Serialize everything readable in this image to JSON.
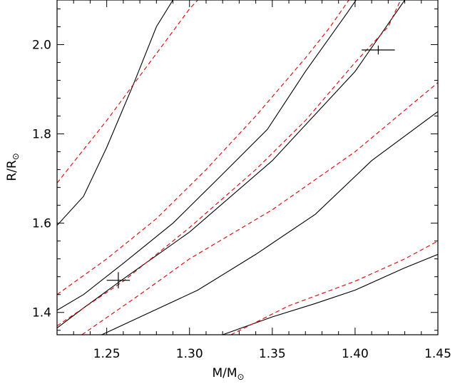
{
  "chart_data": {
    "type": "line",
    "xlabel": "M/M",
    "xlabel_subscript": "⊙",
    "ylabel": "R/R",
    "ylabel_subscript": "⊙",
    "xlim": [
      1.22,
      1.45
    ],
    "ylim": [
      1.35,
      2.1
    ],
    "xticks": [
      1.25,
      1.3,
      1.35,
      1.4,
      1.45
    ],
    "xtick_labels": [
      "1.25",
      "1.30",
      "1.35",
      "1.40",
      "1.45"
    ],
    "yticks": [
      1.4,
      1.6,
      1.8,
      2.0
    ],
    "ytick_labels": [
      "1.4",
      "1.6",
      "1.8",
      "2.0"
    ],
    "grid": false,
    "colors": {
      "solid": "#000000",
      "dashed": "#dd0000"
    },
    "series": [
      {
        "style": "solid",
        "points": [
          [
            1.22,
            1.595
          ],
          [
            1.236,
            1.66
          ],
          [
            1.25,
            1.77
          ],
          [
            1.266,
            1.91
          ],
          [
            1.28,
            2.04
          ],
          [
            1.29,
            2.1
          ]
        ]
      },
      {
        "style": "solid",
        "points": [
          [
            1.22,
            1.405
          ],
          [
            1.236,
            1.44
          ],
          [
            1.26,
            1.51
          ],
          [
            1.29,
            1.6
          ],
          [
            1.32,
            1.71
          ],
          [
            1.347,
            1.81
          ],
          [
            1.37,
            1.94
          ],
          [
            1.395,
            2.07
          ],
          [
            1.41,
            2.15
          ]
        ]
      },
      {
        "style": "solid",
        "points": [
          [
            1.22,
            1.365
          ],
          [
            1.236,
            1.41
          ],
          [
            1.26,
            1.475
          ],
          [
            1.3,
            1.58
          ],
          [
            1.35,
            1.74
          ],
          [
            1.4,
            1.94
          ],
          [
            1.43,
            2.1
          ]
        ]
      },
      {
        "style": "solid",
        "points": [
          [
            1.247,
            1.35
          ],
          [
            1.276,
            1.4
          ],
          [
            1.305,
            1.45
          ],
          [
            1.34,
            1.53
          ],
          [
            1.376,
            1.62
          ],
          [
            1.41,
            1.74
          ],
          [
            1.45,
            1.85
          ]
        ]
      },
      {
        "style": "solid",
        "points": [
          [
            1.32,
            1.35
          ],
          [
            1.35,
            1.39
          ],
          [
            1.376,
            1.42
          ],
          [
            1.4,
            1.45
          ],
          [
            1.43,
            1.5
          ],
          [
            1.45,
            1.53
          ]
        ]
      },
      {
        "style": "dashed",
        "points": [
          [
            1.22,
            1.69
          ],
          [
            1.235,
            1.76
          ],
          [
            1.25,
            1.83
          ],
          [
            1.27,
            1.93
          ],
          [
            1.29,
            2.03
          ],
          [
            1.3,
            2.08
          ],
          [
            1.31,
            2.12
          ]
        ]
      },
      {
        "style": "dashed",
        "points": [
          [
            1.22,
            1.44
          ],
          [
            1.25,
            1.52
          ],
          [
            1.28,
            1.61
          ],
          [
            1.31,
            1.72
          ],
          [
            1.34,
            1.84
          ],
          [
            1.37,
            1.97
          ],
          [
            1.385,
            2.04
          ],
          [
            1.4,
            2.12
          ]
        ]
      },
      {
        "style": "dashed",
        "points": [
          [
            1.22,
            1.37
          ],
          [
            1.26,
            1.47
          ],
          [
            1.3,
            1.59
          ],
          [
            1.34,
            1.72
          ],
          [
            1.37,
            1.83
          ],
          [
            1.4,
            1.96
          ],
          [
            1.42,
            2.04
          ],
          [
            1.43,
            2.12
          ]
        ]
      },
      {
        "style": "dashed",
        "points": [
          [
            1.235,
            1.35
          ],
          [
            1.27,
            1.44
          ],
          [
            1.3,
            1.52
          ],
          [
            1.35,
            1.63
          ],
          [
            1.4,
            1.76
          ],
          [
            1.45,
            1.915
          ]
        ]
      },
      {
        "style": "dashed",
        "points": [
          [
            1.325,
            1.35
          ],
          [
            1.36,
            1.415
          ],
          [
            1.4,
            1.47
          ],
          [
            1.43,
            1.52
          ],
          [
            1.45,
            1.56
          ]
        ]
      }
    ],
    "markers": [
      {
        "x": 1.257,
        "y": 1.472,
        "xerr": 0.007,
        "yerr": 0.018
      },
      {
        "x": 1.414,
        "y": 1.988,
        "xerr": 0.01,
        "yerr": 0.01
      }
    ]
  }
}
